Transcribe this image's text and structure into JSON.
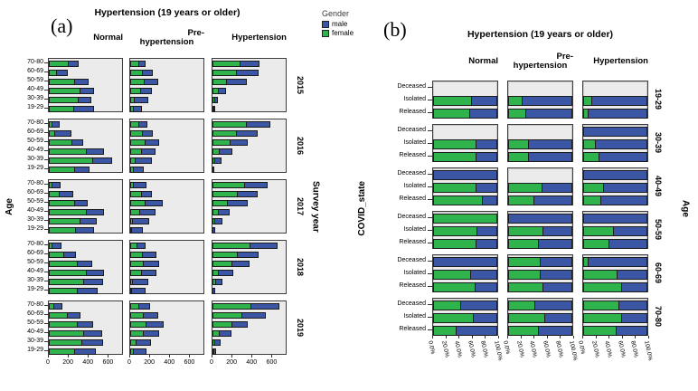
{
  "legend": {
    "title": "Gender",
    "items": [
      {
        "label": "male",
        "color": "#3c56a6"
      },
      {
        "label": "female",
        "color": "#2fb34c"
      }
    ]
  },
  "colors": {
    "female": "#2fb34c",
    "male": "#3c56a6",
    "panel_bg": "#ebebeb",
    "panel_border": "#3d3d3d"
  },
  "chart_data": [
    {
      "id": "a",
      "type": "bar",
      "stacked": true,
      "orientation": "horizontal",
      "panel_label": "(a)",
      "title": "Hypertension (19 years or older)",
      "col_headers": [
        "Normal",
        "Pre-\nhypertension",
        "Hypertension"
      ],
      "row_headers": [
        "2015",
        "2016",
        "2017",
        "2018",
        "2019"
      ],
      "row_axis_label": "Survey year",
      "ylabel": "Age",
      "age_groups": [
        "70-80",
        "60-69",
        "50-59",
        "40-49",
        "30-39",
        "19-29"
      ],
      "x_ticks": [
        "0",
        "200",
        "400",
        "600"
      ],
      "xlim": [
        0,
        750
      ],
      "series": [
        "female",
        "male"
      ],
      "note": "values are [female,male] counts per age group, estimated from bar lengths",
      "values": [
        [
          [
            [
              200,
              100
            ],
            [
              85,
              105
            ],
            [
              265,
              130
            ],
            [
              320,
              130
            ],
            [
              295,
              130
            ],
            [
              255,
              195
            ]
          ],
          [
            [
              90,
              65
            ],
            [
              125,
              105
            ],
            [
              145,
              135
            ],
            [
              105,
              110
            ],
            [
              45,
              135
            ],
            [
              35,
              80
            ]
          ],
          [
            [
              280,
              190
            ],
            [
              245,
              215
            ],
            [
              145,
              195
            ],
            [
              65,
              70
            ],
            [
              30,
              20
            ],
            [
              15,
              10
            ]
          ]
        ],
        [
          [
            [
              35,
              70
            ],
            [
              65,
              165
            ],
            [
              235,
              110
            ],
            [
              375,
              180
            ],
            [
              440,
              195
            ],
            [
              265,
              145
            ]
          ],
          [
            [
              90,
              80
            ],
            [
              125,
              100
            ],
            [
              155,
              130
            ],
            [
              115,
              135
            ],
            [
              50,
              165
            ],
            [
              35,
              100
            ]
          ],
          [
            [
              345,
              230
            ],
            [
              245,
              205
            ],
            [
              180,
              170
            ],
            [
              70,
              130
            ],
            [
              25,
              65
            ],
            [
              5,
              10
            ]
          ]
        ],
        [
          [
            [
              35,
              85
            ],
            [
              105,
              135
            ],
            [
              265,
              125
            ],
            [
              375,
              180
            ],
            [
              315,
              160
            ],
            [
              270,
              185
            ]
          ],
          [
            [
              40,
              125
            ],
            [
              120,
              100
            ],
            [
              155,
              170
            ],
            [
              100,
              155
            ],
            [
              25,
              165
            ],
            [
              20,
              110
            ]
          ],
          [
            [
              325,
              225
            ],
            [
              255,
              200
            ],
            [
              150,
              205
            ],
            [
              65,
              105
            ],
            [
              30,
              65
            ],
            [
              10,
              15
            ]
          ]
        ],
        [
          [
            [
              40,
              85
            ],
            [
              155,
              115
            ],
            [
              290,
              140
            ],
            [
              375,
              175
            ],
            [
              350,
              190
            ],
            [
              285,
              200
            ]
          ],
          [
            [
              75,
              80
            ],
            [
              130,
              135
            ],
            [
              135,
              155
            ],
            [
              115,
              150
            ],
            [
              25,
              160
            ],
            [
              20,
              130
            ]
          ],
          [
            [
              380,
              275
            ],
            [
              255,
              210
            ],
            [
              195,
              175
            ],
            [
              65,
              145
            ],
            [
              35,
              65
            ],
            [
              10,
              15
            ]
          ]
        ],
        [
          [
            [
              50,
              85
            ],
            [
              190,
              130
            ],
            [
              290,
              150
            ],
            [
              350,
              185
            ],
            [
              335,
              210
            ],
            [
              265,
              205
            ]
          ],
          [
            [
              90,
              105
            ],
            [
              135,
              145
            ],
            [
              165,
              170
            ],
            [
              135,
              155
            ],
            [
              65,
              140
            ],
            [
              35,
              130
            ]
          ],
          [
            [
              390,
              275
            ],
            [
              295,
              235
            ],
            [
              195,
              160
            ],
            [
              75,
              115
            ],
            [
              30,
              50
            ],
            [
              15,
              20
            ]
          ]
        ]
      ]
    },
    {
      "id": "b",
      "type": "bar",
      "stacked": true,
      "orientation": "horizontal",
      "unit": "percent",
      "panel_label": "(b)",
      "title": "Hypertension (19 years or older)",
      "col_headers": [
        "Normal",
        "Pre-\nhypertension",
        "Hypertension"
      ],
      "row_headers": [
        "19-29",
        "30-39",
        "40-49",
        "50-59",
        "60-69",
        "70-80"
      ],
      "row_axis_label": "Age",
      "ylabel": "COVID_state",
      "categories": [
        "Deceased",
        "Isolated",
        "Released"
      ],
      "x_tick_labels": [
        "0.0%",
        "20.0%",
        "40.0%",
        "60.0%",
        "80.0%",
        "100.0%"
      ],
      "xlim": [
        0,
        100
      ],
      "series": [
        "female",
        "male"
      ],
      "note": "female_percent: green share of 100% bar; null = no bar shown; remainder is male",
      "female_percent": [
        [
          [
            null,
            60,
            58
          ],
          [
            null,
            23,
            28
          ],
          [
            null,
            14,
            9
          ]
        ],
        [
          [
            null,
            68,
            67
          ],
          [
            null,
            33,
            32
          ],
          [
            0,
            20,
            25
          ]
        ],
        [
          [
            0,
            67,
            77
          ],
          [
            null,
            53,
            41
          ],
          [
            0,
            33,
            28
          ]
        ],
        [
          [
            100,
            69,
            67
          ],
          [
            0,
            55,
            48
          ],
          [
            0,
            48,
            41
          ]
        ],
        [
          [
            0,
            59,
            66
          ],
          [
            50,
            51,
            55
          ],
          [
            9,
            53,
            61
          ]
        ],
        [
          [
            44,
            64,
            37
          ],
          [
            42,
            58,
            48
          ],
          [
            57,
            61,
            52
          ]
        ]
      ]
    }
  ]
}
